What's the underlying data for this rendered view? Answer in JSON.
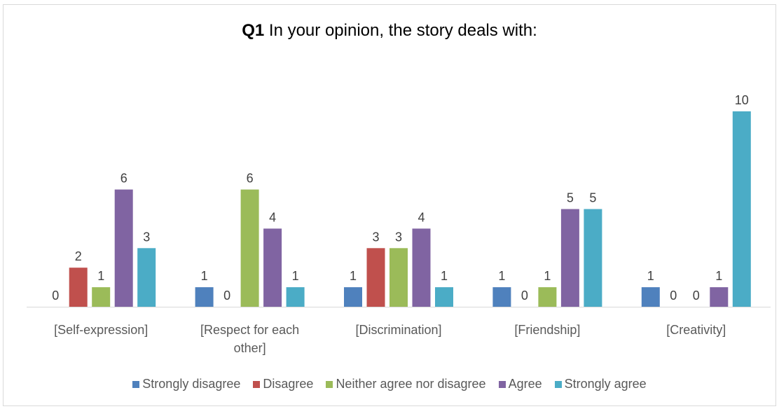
{
  "chart_data": {
    "type": "bar",
    "title_bold": "Q1",
    "title_rest": " In your opinion, the story deals with:",
    "categories": [
      [
        "[Self-expression]"
      ],
      [
        "[Respect for each",
        "other]"
      ],
      [
        "[Discrimination]"
      ],
      [
        "[Friendship]"
      ],
      [
        "[Creativity]"
      ]
    ],
    "series": [
      {
        "name": "Strongly disagree",
        "color": "#4f81bd",
        "values": [
          0,
          1,
          1,
          1,
          1
        ]
      },
      {
        "name": "Disagree",
        "color": "#c0504d",
        "values": [
          2,
          0,
          3,
          0,
          0
        ]
      },
      {
        "name": "Neither agree nor disagree",
        "color": "#9bbb59",
        "values": [
          1,
          6,
          3,
          1,
          0
        ]
      },
      {
        "name": "Agree",
        "color": "#8064a2",
        "values": [
          6,
          4,
          4,
          5,
          1
        ]
      },
      {
        "name": "Strongly agree",
        "color": "#4bacc6",
        "values": [
          3,
          1,
          1,
          5,
          10
        ]
      }
    ],
    "ylim": [
      0,
      10
    ],
    "grid": false,
    "data_labels": true,
    "legend_position": "bottom"
  }
}
